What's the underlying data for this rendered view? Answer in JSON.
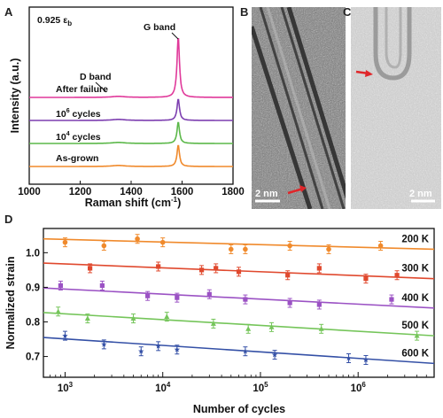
{
  "panels": {
    "a": "A",
    "b": "B",
    "c": "C",
    "d": "D"
  },
  "panel_a": {
    "condition_value": "0.925",
    "condition_symbol": "ε",
    "condition_sub": "b",
    "g_band": "G band",
    "d_band": "D band",
    "spectra_labels": {
      "failure": "After failure",
      "c1e6_base": "10",
      "c1e6_exp": "6",
      "c1e6_suffix": " cycles",
      "c1e4_base": "10",
      "c1e4_exp": "4",
      "c1e4_suffix": " cycles",
      "grown": "As-grown"
    },
    "ylabel": "Intensity (a.u.)",
    "xlabel_main": "Raman shift (cm",
    "xlabel_exp": "-1",
    "xlabel_end": ")"
  },
  "panel_b": {
    "scale": "2 nm"
  },
  "panel_c": {
    "scale": "2 nm"
  },
  "panel_d": {
    "ylabel": "Normalized strain",
    "xlabel": "Number of cycles"
  },
  "chart_data": [
    {
      "type": "line",
      "title": "",
      "xlabel": "Raman shift (cm-1)",
      "ylabel": "Intensity (a.u.)",
      "xlim": [
        1000,
        1800
      ],
      "x_ticks": [
        "1000",
        "1200",
        "1400",
        "1600",
        "1800"
      ],
      "series": [
        {
          "name": "After failure",
          "color": "#e0399a",
          "peak_x": 1585,
          "offset": 3
        },
        {
          "name": "10^6 cycles",
          "color": "#7d3fb0",
          "peak_x": 1585,
          "offset": 2
        },
        {
          "name": "10^4 cycles",
          "color": "#5cb84a",
          "peak_x": 1585,
          "offset": 1
        },
        {
          "name": "As-grown",
          "color": "#f08a2c",
          "peak_x": 1585,
          "offset": 0
        }
      ]
    },
    {
      "type": "scatter",
      "title": "",
      "xlabel": "Number of cycles",
      "ylabel": "Normalized strain",
      "xscale": "log",
      "xlim": [
        600,
        6000000
      ],
      "ylim": [
        0.64,
        1.07
      ],
      "x_ticks": [
        "10^3",
        "10^4",
        "10^5",
        "10^6"
      ],
      "y_ticks": [
        "0.7",
        "0.8",
        "0.9",
        "1.0"
      ],
      "series": [
        {
          "name": "200 K",
          "color": "#f08a2c",
          "fit": [
            [
              600,
              1.04
            ],
            [
              6000000,
              1.01
            ]
          ],
          "points": [
            [
              1000,
              1.03
            ],
            [
              2500,
              1.02
            ],
            [
              5500,
              1.04
            ],
            [
              10000,
              1.03
            ],
            [
              50000,
              1.01
            ],
            [
              70000,
              1.01
            ],
            [
              200000,
              1.02
            ],
            [
              500000,
              1.01
            ],
            [
              1700000,
              1.02
            ]
          ]
        },
        {
          "name": "300 K",
          "color": "#e0492e",
          "fit": [
            [
              600,
              0.97
            ],
            [
              6000000,
              0.925
            ]
          ],
          "points": [
            [
              1800,
              0.955
            ],
            [
              9000,
              0.96
            ],
            [
              25000,
              0.95
            ],
            [
              35000,
              0.955
            ],
            [
              60000,
              0.945
            ],
            [
              190000,
              0.935
            ],
            [
              400000,
              0.955
            ],
            [
              1200000,
              0.925
            ],
            [
              2500000,
              0.935
            ]
          ]
        },
        {
          "name": "400 K",
          "color": "#9b52c4",
          "fit": [
            [
              600,
              0.898
            ],
            [
              6000000,
              0.84
            ]
          ],
          "points": [
            [
              900,
              0.905
            ],
            [
              2400,
              0.905
            ],
            [
              7000,
              0.875
            ],
            [
              14000,
              0.87
            ],
            [
              30000,
              0.88
            ],
            [
              70000,
              0.865
            ],
            [
              200000,
              0.855
            ],
            [
              400000,
              0.85
            ],
            [
              2200000,
              0.865
            ]
          ]
        },
        {
          "name": "500 K",
          "color": "#75c55a",
          "fit": [
            [
              600,
              0.827
            ],
            [
              6000000,
              0.76
            ]
          ],
          "points": [
            [
              850,
              0.83
            ],
            [
              1700,
              0.81
            ],
            [
              5000,
              0.81
            ],
            [
              11000,
              0.815
            ],
            [
              33000,
              0.795
            ],
            [
              75000,
              0.78
            ],
            [
              130000,
              0.785
            ],
            [
              420000,
              0.78
            ],
            [
              4000000,
              0.76
            ]
          ]
        },
        {
          "name": "600 K",
          "color": "#3450a6",
          "fit": [
            [
              600,
              0.755
            ],
            [
              6000000,
              0.68
            ]
          ],
          "points": [
            [
              1000,
              0.76
            ],
            [
              2500,
              0.735
            ],
            [
              6000,
              0.715
            ],
            [
              9000,
              0.73
            ],
            [
              14000,
              0.72
            ],
            [
              70000,
              0.715
            ],
            [
              140000,
              0.705
            ],
            [
              800000,
              0.695
            ],
            [
              1200000,
              0.69
            ]
          ]
        }
      ]
    }
  ]
}
